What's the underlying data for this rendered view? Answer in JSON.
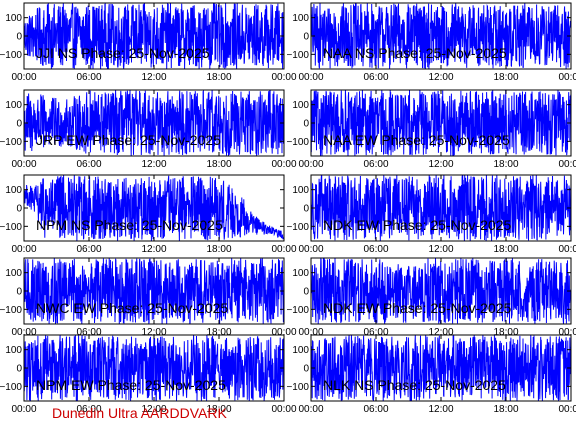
{
  "footer": "Dunedin Ultra AARDDVARK",
  "colors": {
    "trace": "#0000ff",
    "frame": "#000000",
    "footer": "#cc0000",
    "background": "#ffffff"
  },
  "chart_data": [
    {
      "type": "line",
      "title": "JJI NS Phase: 25-Nov-2025",
      "x_ticks": [
        "00:00",
        "06:00",
        "12:00",
        "18:00",
        "00:00"
      ],
      "y_ticks": [
        "100",
        "0",
        "-100"
      ],
      "ylim": [
        -180,
        180
      ],
      "xlim_hours": [
        0,
        24
      ],
      "series": [
        {
          "color": "#0000ff",
          "style": "wrapping",
          "x_hours": [
            0,
            2,
            4,
            6,
            8,
            10,
            12,
            14,
            16,
            18,
            20,
            22,
            24
          ],
          "amplitude": [
            110,
            180,
            180,
            180,
            180,
            180,
            180,
            180,
            180,
            180,
            180,
            180,
            180
          ]
        }
      ]
    },
    {
      "type": "line",
      "title": "NAA NS Phase: 25-Nov-2025",
      "x_ticks": [
        "00:00",
        "06:00",
        "12:00",
        "18:00",
        "00:00"
      ],
      "y_ticks": [
        "100",
        "0",
        "-100"
      ],
      "ylim": [
        -180,
        180
      ],
      "xlim_hours": [
        0,
        24
      ],
      "series": [
        {
          "color": "#0000ff",
          "style": "wrapping",
          "x_hours": [
            0,
            2,
            4,
            6,
            8,
            10,
            12,
            14,
            16,
            18,
            20,
            22,
            24
          ],
          "amplitude": [
            180,
            180,
            180,
            180,
            180,
            180,
            180,
            180,
            180,
            180,
            180,
            180,
            180
          ]
        }
      ]
    },
    {
      "type": "line",
      "title": "JRP EW Phase: 25-Nov-2025",
      "x_ticks": [
        "00:00",
        "06:00",
        "12:00",
        "18:00",
        "00:00"
      ],
      "y_ticks": [
        "100",
        "0",
        "-100"
      ],
      "ylim": [
        -180,
        180
      ],
      "xlim_hours": [
        0,
        24
      ],
      "series": [
        {
          "color": "#0000ff",
          "style": "wrapping",
          "x_hours": [
            0,
            2,
            4,
            6,
            8,
            10,
            12,
            14,
            16,
            18,
            20,
            22,
            24
          ],
          "amplitude": [
            180,
            150,
            130,
            180,
            180,
            180,
            180,
            180,
            180,
            180,
            180,
            180,
            180
          ]
        }
      ]
    },
    {
      "type": "line",
      "title": "NAA EW Phase: 25-Nov-2025",
      "x_ticks": [
        "00:00",
        "06:00",
        "12:00",
        "18:00",
        "00:00"
      ],
      "y_ticks": [
        "100",
        "0",
        "-100"
      ],
      "ylim": [
        -180,
        180
      ],
      "xlim_hours": [
        0,
        24
      ],
      "series": [
        {
          "color": "#0000ff",
          "style": "wrapping",
          "x_hours": [
            0,
            2,
            4,
            6,
            8,
            10,
            12,
            14,
            16,
            18,
            20,
            22,
            24
          ],
          "amplitude": [
            180,
            180,
            180,
            180,
            180,
            180,
            180,
            180,
            180,
            180,
            180,
            180,
            180
          ]
        }
      ]
    },
    {
      "type": "line",
      "title": "NPM NS Phase: 25-Nov-2025",
      "x_ticks": [
        "00:00",
        "06:00",
        "12:00",
        "18:00",
        "00:00"
      ],
      "y_ticks": [
        "100",
        "0",
        "-100"
      ],
      "ylim": [
        -180,
        180
      ],
      "xlim_hours": [
        0,
        24
      ],
      "series": [
        {
          "color": "#0000ff",
          "style": "wrapping",
          "x_hours": [
            0,
            1,
            2,
            4,
            6,
            8,
            10,
            12,
            14,
            16,
            18,
            20,
            21,
            22,
            23,
            24
          ],
          "trend": [
            80,
            40,
            0,
            0,
            0,
            0,
            0,
            0,
            0,
            0,
            0,
            -40,
            -80,
            -110,
            -130,
            -150
          ],
          "amplitude": [
            50,
            80,
            180,
            180,
            180,
            180,
            180,
            180,
            180,
            180,
            180,
            120,
            60,
            40,
            25,
            20
          ]
        }
      ]
    },
    {
      "type": "line",
      "title": "NDK EW Phase: 25-Nov-2025",
      "x_ticks": [
        "00:00",
        "06:00",
        "12:00",
        "18:00",
        "00:00"
      ],
      "y_ticks": [
        "100",
        "0",
        "-100"
      ],
      "ylim": [
        -180,
        180
      ],
      "xlim_hours": [
        0,
        24
      ],
      "series": [
        {
          "color": "#0000ff",
          "style": "wrapping",
          "x_hours": [
            0,
            2,
            4,
            6,
            8,
            10,
            12,
            14,
            16,
            18,
            20,
            22,
            24
          ],
          "amplitude": [
            180,
            180,
            180,
            180,
            180,
            180,
            180,
            180,
            180,
            180,
            180,
            180,
            180
          ]
        }
      ]
    },
    {
      "type": "line",
      "title": "NWC EW Phase: 25-Nov-2025",
      "x_ticks": [
        "00:00",
        "06:00",
        "12:00",
        "18:00",
        "00:00"
      ],
      "y_ticks": [
        "100",
        "0",
        "-100"
      ],
      "ylim": [
        -180,
        180
      ],
      "xlim_hours": [
        0,
        24
      ],
      "series": [
        {
          "color": "#0000ff",
          "style": "wrapping",
          "x_hours": [
            0,
            2,
            4,
            6,
            8,
            10,
            12,
            14,
            16,
            18,
            20,
            22,
            24
          ],
          "amplitude": [
            180,
            180,
            180,
            180,
            180,
            180,
            180,
            180,
            180,
            180,
            180,
            180,
            180
          ]
        }
      ]
    },
    {
      "type": "line",
      "title": "NDK EW Phase: 25-Nov-2025",
      "x_ticks": [
        "00:00",
        "06:00",
        "12:00",
        "18:00",
        "00:00"
      ],
      "y_ticks": [
        "100",
        "0",
        "-100"
      ],
      "ylim": [
        -180,
        180
      ],
      "xlim_hours": [
        0,
        24
      ],
      "series": [
        {
          "color": "#0000ff",
          "style": "wrapping",
          "x_hours": [
            0,
            2,
            4,
            6,
            8,
            10,
            12,
            14,
            16,
            18,
            20,
            22,
            24
          ],
          "amplitude": [
            180,
            180,
            180,
            180,
            180,
            180,
            180,
            180,
            180,
            180,
            180,
            180,
            180
          ]
        }
      ]
    },
    {
      "type": "line",
      "title": "NPM EW Phase: 25-Nov-2025",
      "x_ticks": [
        "00:00",
        "06:00",
        "12:00",
        "18:00",
        "00:00"
      ],
      "y_ticks": [
        "100",
        "0",
        "-100"
      ],
      "ylim": [
        -180,
        180
      ],
      "xlim_hours": [
        0,
        24
      ],
      "series": [
        {
          "color": "#0000ff",
          "style": "wrapping",
          "x_hours": [
            0,
            2,
            4,
            6,
            8,
            10,
            12,
            14,
            16,
            18,
            20,
            22,
            24
          ],
          "amplitude": [
            180,
            180,
            180,
            180,
            180,
            180,
            180,
            180,
            180,
            180,
            180,
            180,
            180
          ]
        }
      ]
    },
    {
      "type": "line",
      "title": "NLK NS Phase: 25-Nov-2025",
      "x_ticks": [
        "00:00",
        "06:00",
        "12:00",
        "18:00",
        "00:00"
      ],
      "y_ticks": [
        "100",
        "0",
        "-100"
      ],
      "ylim": [
        -180,
        180
      ],
      "xlim_hours": [
        0,
        24
      ],
      "series": [
        {
          "color": "#0000ff",
          "style": "wrapping",
          "x_hours": [
            0,
            2,
            4,
            6,
            8,
            10,
            12,
            14,
            16,
            18,
            20,
            22,
            24
          ],
          "amplitude": [
            180,
            180,
            180,
            180,
            180,
            180,
            180,
            180,
            180,
            180,
            180,
            180,
            180
          ]
        }
      ]
    }
  ]
}
